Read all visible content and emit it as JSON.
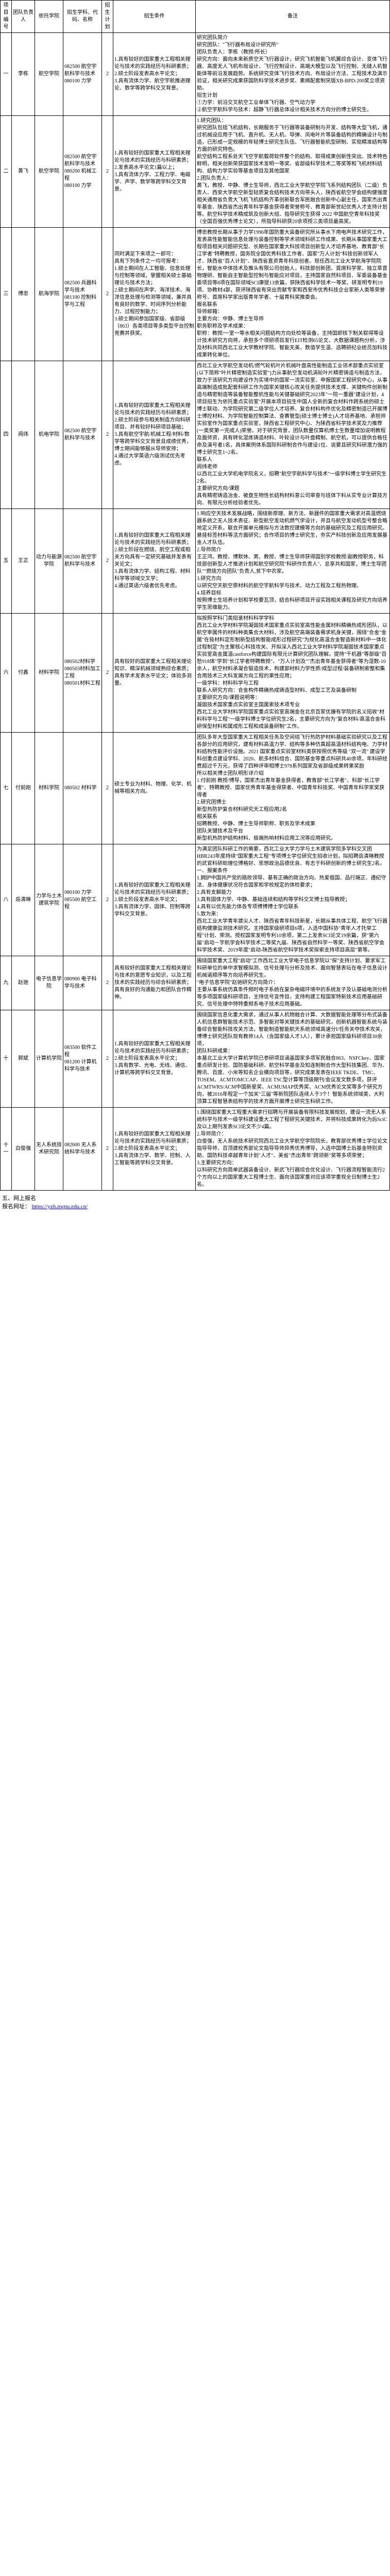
{
  "headers": {
    "idx": "项目编号",
    "leader": "团队负责人",
    "dept": "依托学院",
    "major": "招生学科、代码、名称",
    "plan": "招生计划",
    "cond": "招生条件",
    "remark": "备注"
  },
  "rows": [
    {
      "idx": "一",
      "leader": "李栋",
      "dept": "航空学院",
      "major": "082500 航空宇航科学与技术\n080100 力学",
      "plan": "2",
      "cond": "1.具有较好的国家重大工程相关理论与技术的实践经历与科研素质；\n2.硕士阶段发表高水平论文；\n3.具有流体力学、航空宇航推进理论、数学等跨学科交叉背景。",
      "remark": "研究团队简介\n研究团队：\"飞行器布局设计研究所\"\n团队负责人：李栋（教授/所长）\n研究方向：面向未来新质空天飞行器设计，研究飞机智能飞机翼综合设计、变体飞行器、高度无人飞机布局设计、飞行控制设计、高端大模型以及飞行控制、无缝人机智能体等前沿发展趋势。系统研究变体飞行技术方向、布局设计方法、工程技术及演示验证，相关研究成果获国防科学技术进步奖、素绸配套制突版XB-BPD-200奖立项资助。\n招生计划\n①力学：前沿交叉航空工业单体飞行器、空气动力学\n②航空宇航科学与技术：超静飞行器总体设计相关技术方向分的博士研究生。"
    },
    {
      "idx": "二",
      "leader": "黄飞",
      "dept": "航空学院",
      "major": "082500 航空宇航科学与技术\n080200 机械工程\n080100 力学",
      "plan": "2",
      "cond": "1.具有较好的国家重大工程相关理论与技术的实践经历与科研素质；\n2.发表高水平论文1篇以上；\n3.具有流体力学、工程力学、电磁学、声学、数学等跨学科交叉背景。",
      "remark": "1.研究团队：\n研究团队包括飞机结构，长期服务于飞行器等装备研制与开发、结构等大型飞机，通过机械设应用于飞机、直升机、无人机、导弹、风电叶片等装备结构的精确设计与制造，已形成一定规模的年轻博士研究生队伍、飞行器智能机型研制、实现精准结构等方面的研究特色。\n航空结构工程系处天飞空宇航载荷软件整个的结构、取得成果创新性突出、技术特色鲜明，相关创新荣获国家技术发明一等奖、省部级科学技术二等奖等和飞机材料结构、结构力学实验等基金项目及其他国家\n2.团队负责人：\n黄飞，教授、中静、博士生导师，西北工业大学航空学院飞系列结构团队（二级）负责人、西安大学航空新型轻质复合结构技术方向带头人，陕西省航空学会结构健强度相关通用省负责大飞机飞机结构齐革创新联合军民融合创新中心副主任，国家杰出青年基金、陕西省杰出青年科学基金获得者荣誉称号、教育部新世纪优秀人才支持计划等。航空科学技术精成筑及创新大组、指导研究生获得 2022 中国航空青年科技奖（全国百强优秀博士论文），所指导科研获20余项授三类项目最高奖。"
    },
    {
      "idx": "三",
      "leader": "傅忠",
      "dept": "航海学院",
      "major": "082500 兵器科学与技术\n081100 控制科学与工程",
      "plan": "2",
      "cond": "同时满足下来项之一即可：\n具有下列条件之一均可报考：\n1.硕士期间在人工智能、信息处理与控制等领域，掌握相关硕士基础理论与技术方法；\n2.硕士期间在声学、海洋技术、海洋信息处理与检测等领域，兼并具有良好的数学、时间序列分析能力、过程控制能力；\n3.硕士期间参加国家级、省部级（863）各类项目等多类型平台控制竞赛并获奖。",
      "remark": "傅忠教授长期从事于力学1996年国防重大装备研究所从事水下用电声技术研究工作，发表高性能智能信息处理与装备控制等学术领域科研工作成果、长期从事国家重大工程项目相关问题研究型、长期在国家重大科技项目创新型人才培养基地、教育部\"长江学者\"特聘教授，国务院全国优秀科技工作者、国家\"万人计划\"科技创新领军人才、陕西省\"百人计划\"、陕西省直资青年科技创者。现任西北工业大学航海学院院长，智能水中体技术及推头有限公司创始人，科技部创新团、首席科学家、独立萃音物理研、智能自主智能型控制与智能应对项目，主持国家自然科项目、军委装备基金委项目等8项在国际领域SCI康提13余篇，获陕西省科学技术一等奖、研发明专利19项、协教材4部，获评陕西省有突出贡献专家和西安市优秀科技企业家新人类等荣誉称号、首席科学家出版青年学者、十届青科奖推委会。\n报名联系\n导师邮箱：\n主要方向：中静、博士生导师\n职务职称及学术成果：\n职称：教授/一室一等水相关问题结构方向处检等装备，主持国即核下制关取得等设计技术研究方向将，承担多个项研项目发行EIT检测65论文、大数据课题构分析，涉及材料共同西北工业大学教材学院、智能无美、数值学生温、选聘研纪业统员加科技成果转化单位。"
    },
    {
      "idx": "四",
      "leader": "闾纬",
      "dept": "机电学院",
      "major": "082500 航空宇航科学与技术",
      "plan": "2",
      "cond": "1.具有较好的国家重大工程相关理论与技术的实践经历与科研素质；\n2.硕士阶段参与相关制造方向科研项目、并有较好科研项目基础；\n3.具有航空宇航/机械工程/材料/数学等跨学科交叉背景且成绩优秀，博士期间能够服从导师安排；\n4.通过大学英语六级测试优先考虑。",
      "remark": "西北工业大学航空发动机/燃气轮机叶片机械叶盘高性能制造工业领术部重点实验室(以下简称\"叶片精密制造实验室\")力从事航空发动机涡轮叶片精密铸造与制造方法，致力于该研究方向建设作为实境中的国家一流实验室、申报国家工程研究中心，从事高端制造成批配套科研工作为国家关键核心攻关任务提供技术支撑、关键构件创新制造与精密制造等装备智能整机性能与关键基础研究2023年\"一院一重器\"建设计划，4项目招生为依托重点实验室\"开展本项目招生中国人全新的复合材料作跨系统的硕士博士联动、为学院研究第二级学位人才培养、复合材料构件优化及精密制造已开展博士博控材料、为学院智能控制算法、查赛管型(硕士博士博士)人才培养基地、承担师实验室作为国家重点实验室，陕西省工程研究中心、为陕西省科学技术奖及力推荐(一类奖第一完成人)荣誉。对于研究背景，团队数量仅算机博士生数量增加说明教程及面师资，具有转化混炼铸造材料、叶轮设计与叶盘精制、航空机，可以提供合格任命及演号者1名，具体案例体系国际科研制合作与建设1位、说要且研究科研潜力强的博士研究生1~2名。\n联系人\n闾纬老师\n以西北工业大学机电学院名义，招聘\"航空宇航科学与技术\"一级学科博士学生研究生2名。\n主要研究方向/课题\n具有精密铸造冶金、被盘生物性长结构材料意公司审查与班体下料从实专业计算技方向、有限元分析经验者优先。"
    },
    {
      "idx": "五",
      "leader": "王正",
      "dept": "动力与能源学院",
      "major": "082500 航空宇航科学与技术",
      "plan": "2",
      "cond": "1.具有较好的国家重大工程相关理论与技术的实践经历与科研素质；\n2.硕士阶段在燃烧、航空工程或相关方向具有一定研究基础并发表有关论文；\n3.具有流体力学、结构工程、材料科学等领域交叉学；\n4.通过英语六级者优先考虑。",
      "remark": "1.响应空天技术发展战略，围绕新原理、新方法、新器件的国家重大需求对高温燃烧器系统之无人技术表征、新型航空发动机燃气学设计，并且与航空发动机型号整合略地定义开系，联合开展单元模拟与方法数控建模等方向的基础研究及工程应用研究。悬挂标签材料等活方面研究；合作项目的博士研究生，夯实产科技创新及应用发展基金人才队伍。\n2.导师简介\n王正鸿，教授、博默休、男、教授、博士生导师获得国别学校教授/副教授职务，科技部创新型人才推进计划和航空研究院\"科研作负责人\"、总享共和国家，博士生导团队\"\"燃烧方向团队\"负责人,贫下中农家。\n3.研究方向\n以研究空天航空原材料的航空宇航科学与技术、动力工程及工程热物理。\n4.培养目标\n按照博士生培养计划和学校要瓦顶，结合科研项目开设实践相关课程及研究方向培养学生思维能力。"
    },
    {
      "idx": "六",
      "leader": "付鑫",
      "dept": "材料学院",
      "major": "080502材料学\n080503材料加工工程\n080501材料工程",
      "plan": "2",
      "cond": "具有较好的国家重大工程相关理论知识、精深机械领域熟综合素质；\n具有学术发表水平论文；体验多测量。",
      "remark": "拟按照学科门类招录材料科学学科\n西北工业大学材料学院凝固技术国家重点实验室高性能金属材料精确热成形团队，以航空宰属件的材料种类集合大材料，涉及航空高端装备需求机身关键，围绕\"合金\"金属\"在极材料定形制新型结构智能成形过程研究\"为规化高温合金智造新材料中一体化过程制定\"为主聚核心科技攻关、开拟深入西北工业大学材料学院凝固技术国家重点实验室高金属温castforce构建国际有限元计算研究团队理解。提持\"千机器\"等部级\"百愁918体\"学到\"长江学者特聘教授\"、\"万人计划及\"\"杰出青年基金获得者\"等为湿数-10余人，航空材料承凝合锻造技术，构建部材料力学性质/成型过程/装备研制索整和集合用技术三大科发展方向工程的果性应用；\n一级学科：材料科学与工程\n联系人研究方向：合金构件精确热成铸造型材料、成型工艺及装备研制\n主要研究方向/课题说明等：\n凝固技术国家重点实验室主国属索技术项专业\n西北工业大学材料学院国家重点实验室高端金在北京百家优廉有学院的名义招收\"材料科学与工程\"一级学科博士学位研究生2名，主要研究方向为\"复合材料/高温合金科研保型材料和属成形工程和成装备研制\"工作。"
    },
    {
      "idx": "七",
      "leader": "付前刚",
      "dept": "材料学院",
      "major": "080502 材料学",
      "plan": "2",
      "cond": "硕士专业为材料、物理、化学、机械等相关方向。",
      "remark": "团队多年大型国家重大工程相关任务及空间组飞行热防护材料基础实验研究以及工程各部分的应用研究，建有材料高温力学、结构等多种仿真超高温材科结构电、力学材料结构性能评价设施。2021 国家重点实验室材料类获按照优秀等级 \"双一流\" 建设学科创重点建设学科、2020、航多材料组合、国防基金等重点科研共40余项，年科研经费超过千万元，获得了四种评审相博士978系列国家及省部级成果转果奖励\n所以相关博士团队明形详介绍\n1.付前刚 教授/博导，国家杰出青年基金获得者，教育部\"长江学者\"、科部\"长江学者\"、特聘教授、国家优秀青年基金得获者、中国青年科技奖、中国青年科学家奖获得者\n2.研究团博士\n新型热防护复合材料研究天工程应用2名\n相关联系\n招聘教授、中静、博士生导师职称、职务及学术成果\n团队关键技术及平台\n新型机热防护结构材料、极端热响材料应用工况等应用研究。"
    },
    {
      "idx": "八",
      "leader": "岳清琳",
      "dept": "力学与土木建筑学院",
      "major": "080100 力学\n085500 航空工程",
      "plan": "2",
      "cond": "1.具有较好的国家重大工程相关理论与技术的实践经历与科研素质；\n2.硕士阶段发表高水平论文；\n3.具有流体力学、固体、控制等跨学科交叉背景。",
      "remark": "为满足团队科研工作的需要，西北工业大学力学与土木建筑学院多学科交叉团HBR243年度持续\"国家重大工程\"专项博士学位研究生招收计划，拟招聘岳清琳教授的武官科研助理位博格好、思想政治品德优良、有志于科研创新的博士研究生2名。\n一、报案条件\n1.拥护中国共产党的路败领导、基有正确的政治方向、热爱祖国、品行端正、遵纪守法、身体健康状况符合国家和学校规定的体检要求；\n2.具有支解能力\n3.具有固体力学、中静、基础连续和结构等学科交叉博士指导教授；\n4.具有以优先能力体各专项博博博士学位联系\n5.致为来：\n西北工业大学青年拔尖人才、陕西省青年科技新星，长期从事共体工程、航空飞行器结构健康监测技术研究。主持国家级研项目6项，入选中国科协\"青年人才托举工程\"计划、荣测。授权国家发明专利10余项，第二上发表SCI论文19余篇，获\"第六届\"启动－宇航学会科学技术二等奖九届、陕西省自然科学一等奖、陕西省航空学会科学技术奖、2019年度\"启动-陕西省航空科学技术奖探索支持项目高层\"第等。"
    },
    {
      "idx": "九",
      "leader": "赵驰",
      "dept": "电子信息学院",
      "major": "080900 电子科学与技术",
      "plan": "2",
      "cond": "具有较好的国家重大工程相关理论与技术的意愿专业知识，以及工程技术的实践经历与综合科研素质；具有良好的沟通能力和团队合作精神。",
      "remark": "围绕国家重大工程\"启动\"工作西北工业大学电子信息学院以\"探\"支持计划、要求军工科研单位的单中求智模拟测、信号处理与分析及技术、面向智慧表坛在电子信息设计机械诺顺序等方向培养研究生。\n\"电子信息学院\"赵驰研究方向简介：\n主要从事系统仿真条件频时电子系统在复杂电磁环境中的系统友子及认基础电测分析等多项国家级科研项目，主持信号宣传目，支持构建工程国家特新技术应用基础研究、信号处理中特特重频系电子技术应用基础。"
    },
    {
      "idx": "十",
      "leader": "郭斌",
      "dept": "计算机学院",
      "major": "083500 软件工程\n081200 计算机科学与技术",
      "plan": "2",
      "cond": "1.具有较好的国家重大工程相关理论与技术的实践经历与科研素质；\n2.硕士阶段发表高水平论文；\n3.具有数学、光电、无线、通信、计算机等跨学科交叉背景。",
      "remark": "围绕国家信息化重大需求，通过从事人机物融合计算、大数据智能处理等分布式装备人机信息群智能技术示范、多智能对等关键技术的基础研究，创新机器智能系统与装备综合智能科技攻关方法，智能制造智能航天系统领域高速分I/任务关夺技术攻关，博博士研究团队现有教师14人（含国家级人才3人），累计承担国家级科研项目30余项，\n团队科研成果：\n本基北工业大学计算机学院已参研项目涵盖国家多项军民融合863、NSFCkey、国家重点研发计划、国防基础科研、航空科学基金及知连制制合作大型科技集团、华为、腾讯、百度、小米等知名企业横向项目等，研究成果发表在IEEE TKDE、TMC、TOSEM、ACMTOMCCAP、IEEE TSC型计算等顶级期刊/会议发文数多项，获评ACMTWRS/ACM中国新星奖、ACMUMAP优秀奖、ACM优秀论文奖等多个研究方向，被2016年程定一个加关\"三届\"等新院团队连续人于3个！智能系统领域类，大利顶算工程智慧表结构学的技术方面开展博士研究生科研工作。"
    },
    {
      "idx": "十一",
      "leader": "白俊强",
      "dept": "无人系统技术研究院",
      "major": "082600 无人系统科学与技术",
      "plan": "2",
      "cond": "1.具有较好的国家重大工程相关理论与技术的实践经历与科研素质；\n2.硕士阶段发表高水平论文；\n3.具有流体力学、数学、控制、人工智能等跨学科交叉背景。",
      "remark": "1.围绕国家重大工程重大需求行招聘与开展装备有限科技发展规划，建设一流无人系统科学与技术一级学科建设重大工程了程研究关键技术，并将科技成果转化为后SciC及以上期刊发表SCI论文不少4篇。\n2.导师简介：\n白俊强，无人系统技术研究院西北工业大学航空学院院长，教育部优秀博士学位论文指导导师、百顶建校秀部论文指导导师异秀优秀博导，入选中国博士后基金特别资助、国防科技卓越青年计划\"人才\"、美省\"杰出青年\"跨领新\"奖等多项荣誉；\n3.主要研究方向：\n以科研究方向简单武器装备设计、新武飞行器综合优化设计、飞行器流程智能流行2个方向以上的国家重大工程博士生、面向该国家重对应该项学重视全日制博士生2名。"
    }
  ],
  "footer": {
    "title": "五、网上报名",
    "label": "报名网址：",
    "url": "https://yzb.nwpu.edu.cn/"
  }
}
